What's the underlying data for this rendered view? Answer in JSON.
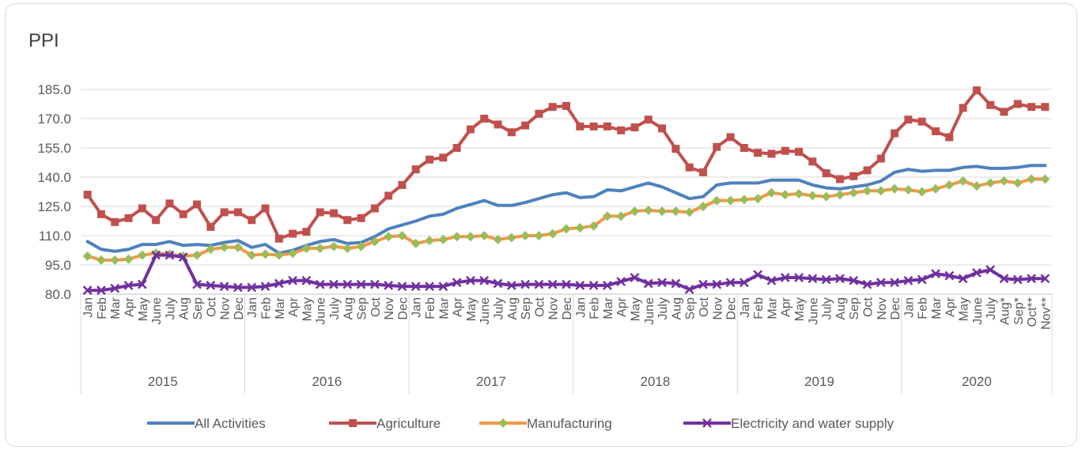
{
  "chart_data": {
    "type": "line",
    "title": "PPI",
    "xlabel": "",
    "ylabel": "",
    "ylim": [
      80,
      185
    ],
    "yticks": [
      80.0,
      95.0,
      110.0,
      125.0,
      140.0,
      155.0,
      170.0,
      185.0
    ],
    "grid": "horizontal",
    "legend_position": "bottom",
    "years": [
      {
        "label": "2015",
        "count": 12
      },
      {
        "label": "2016",
        "count": 12
      },
      {
        "label": "2017",
        "count": 12
      },
      {
        "label": "2018",
        "count": 12
      },
      {
        "label": "2019",
        "count": 12
      },
      {
        "label": "2020",
        "count": 11
      }
    ],
    "categories": [
      "Jan",
      "Feb",
      "Mar",
      "Apr",
      "May",
      "June",
      "July",
      "Aug",
      "Sep",
      "Oct",
      "Nov",
      "Dec",
      "Jan",
      "Feb",
      "Mar",
      "Apr",
      "May",
      "June",
      "July",
      "Aug",
      "Sep",
      "Oct",
      "Nov",
      "Dec",
      "Jan",
      "Feb",
      "Mar",
      "Apr",
      "May",
      "June",
      "July",
      "Aug",
      "Sep",
      "Oct",
      "Nov",
      "Dec",
      "Jan",
      "Feb",
      "Mar",
      "Apr",
      "May",
      "June",
      "July",
      "Aug",
      "Sep",
      "Oct",
      "Nov",
      "Dec",
      "Jan",
      "Feb",
      "Mar",
      "Apr",
      "May",
      "June",
      "July",
      "Aug",
      "Sep",
      "Oct",
      "Nov",
      "Dec",
      "Jan",
      "Feb",
      "Mar",
      "Apr",
      "May",
      "June",
      "July",
      "Aug*",
      "Sep*",
      "Oct**",
      "Nov**"
    ],
    "series": [
      {
        "name": "All Activities",
        "color": "#4e81bd",
        "marker": "none",
        "values": [
          107,
          103,
          102,
          103,
          105.5,
          105.5,
          107,
          105,
          105.5,
          105,
          106.5,
          107.5,
          104,
          105.5,
          101,
          102.5,
          105,
          107,
          108,
          106,
          106.5,
          109.5,
          113.5,
          115.5,
          117.5,
          120,
          121,
          124,
          126,
          128,
          125.5,
          125.5,
          127,
          129,
          131,
          132,
          129.5,
          130,
          133.5,
          133,
          135,
          137,
          135,
          132,
          129,
          130,
          136,
          137,
          137,
          137,
          138.5,
          138.5,
          138.5,
          136,
          134.5,
          134,
          135,
          136,
          138,
          142.5,
          144,
          143,
          143.5,
          143.5,
          145,
          145.5,
          144.5,
          144.5,
          145,
          146,
          146
        ]
      },
      {
        "name": "Agriculture",
        "color": "#c0504d",
        "marker": "square",
        "values": [
          131,
          121,
          117,
          119,
          124,
          118,
          126.5,
          121,
          126,
          114.5,
          122,
          122,
          118,
          124,
          108.5,
          111,
          112,
          122,
          121.5,
          118,
          119,
          124,
          130.5,
          136,
          144,
          149,
          150,
          155,
          164.5,
          170,
          167,
          163,
          166.5,
          172.5,
          176,
          176.5,
          166,
          166,
          166,
          164,
          165.5,
          169.5,
          165,
          154.5,
          145,
          142.5,
          155.5,
          160.5,
          155,
          152.5,
          152,
          153.5,
          153,
          148,
          142,
          139,
          140.5,
          143.5,
          149.5,
          162.5,
          169.5,
          168.5,
          163.5,
          160.5,
          175.5,
          184.5,
          177,
          173.5,
          177.5,
          176,
          176
        ]
      },
      {
        "name": "Manufacturing",
        "color": "#f79646",
        "marker": "diamond",
        "marker_color": "#9bbb59",
        "values": [
          99.5,
          97.5,
          97.5,
          98,
          100,
          101,
          100.5,
          99.5,
          100,
          103,
          104,
          104,
          100,
          100.5,
          100,
          101,
          103.5,
          103.5,
          104.5,
          103.5,
          104.5,
          107,
          109.5,
          110,
          106,
          107.5,
          108,
          109.5,
          109.5,
          110,
          108,
          109,
          110,
          110,
          111,
          113.5,
          114,
          115,
          120,
          120,
          122.5,
          123,
          122.5,
          122.5,
          122,
          125,
          128,
          128,
          128.5,
          129,
          132,
          131,
          131.5,
          130.5,
          130,
          131,
          132,
          133,
          133,
          134,
          133.5,
          132.5,
          134,
          136,
          138,
          135.5,
          137,
          138,
          137,
          139,
          139
        ]
      },
      {
        "name": "Electricity and water supply",
        "color": "#7030a0",
        "marker": "x",
        "values": [
          82,
          82,
          83,
          84.5,
          85,
          100,
          100,
          99,
          85,
          84.5,
          84,
          83.5,
          83.5,
          84,
          85.5,
          87,
          87,
          85,
          85,
          85,
          85,
          85,
          84.5,
          84,
          84,
          84,
          84,
          86,
          87,
          87,
          85.5,
          84.5,
          85,
          85,
          85,
          85,
          84.5,
          84.5,
          84.5,
          86.5,
          88.5,
          85.5,
          86,
          85.5,
          82.5,
          85,
          85,
          86,
          86,
          90,
          87,
          88.5,
          88.5,
          88,
          87.5,
          88,
          87,
          85,
          86,
          86,
          87,
          87.5,
          90.5,
          89.5,
          88,
          91,
          92.5,
          88,
          87.5,
          88,
          88
        ]
      }
    ]
  }
}
